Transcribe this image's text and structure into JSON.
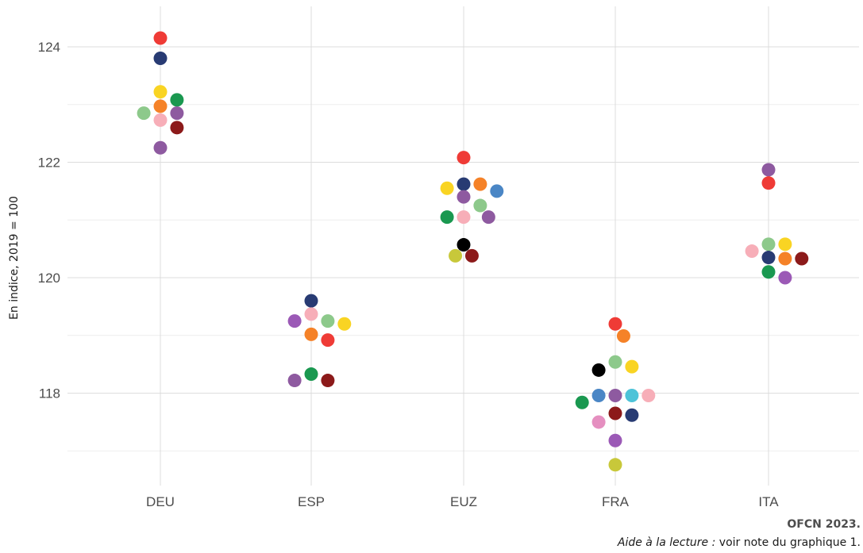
{
  "chart_data": {
    "type": "scatter",
    "ylabel": "En indice, 2019 = 100",
    "xlabel": "",
    "categories": [
      "DEU",
      "ESP",
      "EUZ",
      "FRA",
      "ITA"
    ],
    "ylim": [
      116.4,
      124.7
    ],
    "y_ticks": [
      "118",
      "120",
      "122",
      "124"
    ],
    "grid": true,
    "points": [
      {
        "category": "DEU",
        "y": 124.15,
        "color": "#ef3b36"
      },
      {
        "category": "DEU",
        "y": 123.8,
        "color": "#283b73"
      },
      {
        "category": "DEU",
        "y": 123.22,
        "color": "#f9d423"
      },
      {
        "category": "DEU",
        "y": 123.08,
        "color": "#1a9850"
      },
      {
        "category": "DEU",
        "y": 122.97,
        "color": "#f58228"
      },
      {
        "category": "DEU",
        "y": 122.85,
        "color": "#8e5aa0"
      },
      {
        "category": "DEU",
        "y": 122.85,
        "color": "#8dc98b"
      },
      {
        "category": "DEU",
        "y": 122.73,
        "color": "#f7aeb8"
      },
      {
        "category": "DEU",
        "y": 122.6,
        "color": "#8c1a1a"
      },
      {
        "category": "DEU",
        "y": 122.25,
        "color": "#8e5aa0"
      },
      {
        "category": "ESP",
        "y": 119.6,
        "color": "#283b73"
      },
      {
        "category": "ESP",
        "y": 119.37,
        "color": "#f7aeb8"
      },
      {
        "category": "ESP",
        "y": 119.25,
        "color": "#8dc98b"
      },
      {
        "category": "ESP",
        "y": 119.25,
        "color": "#9b59b6"
      },
      {
        "category": "ESP",
        "y": 119.2,
        "color": "#f9d423"
      },
      {
        "category": "ESP",
        "y": 119.02,
        "color": "#f58228"
      },
      {
        "category": "ESP",
        "y": 118.92,
        "color": "#ef3b36"
      },
      {
        "category": "ESP",
        "y": 118.33,
        "color": "#1a9850"
      },
      {
        "category": "ESP",
        "y": 118.22,
        "color": "#8c1a1a"
      },
      {
        "category": "ESP",
        "y": 118.22,
        "color": "#8e5aa0"
      },
      {
        "category": "EUZ",
        "y": 122.08,
        "color": "#ef3b36"
      },
      {
        "category": "EUZ",
        "y": 121.62,
        "color": "#283b73"
      },
      {
        "category": "EUZ",
        "y": 121.62,
        "color": "#f58228"
      },
      {
        "category": "EUZ",
        "y": 121.55,
        "color": "#f9d423"
      },
      {
        "category": "EUZ",
        "y": 121.5,
        "color": "#4a86c5"
      },
      {
        "category": "EUZ",
        "y": 121.4,
        "color": "#8e5aa0"
      },
      {
        "category": "EUZ",
        "y": 121.25,
        "color": "#8dc98b"
      },
      {
        "category": "EUZ",
        "y": 121.05,
        "color": "#f7aeb8"
      },
      {
        "category": "EUZ",
        "y": 121.05,
        "color": "#1a9850"
      },
      {
        "category": "EUZ",
        "y": 121.05,
        "color": "#8e5aa0"
      },
      {
        "category": "EUZ",
        "y": 120.57,
        "color": "#000000"
      },
      {
        "category": "EUZ",
        "y": 120.38,
        "color": "#8c1a1a"
      },
      {
        "category": "EUZ",
        "y": 120.38,
        "color": "#c8c83a"
      },
      {
        "category": "FRA",
        "y": 119.2,
        "color": "#ef3b36"
      },
      {
        "category": "FRA",
        "y": 118.99,
        "color": "#f58228"
      },
      {
        "category": "FRA",
        "y": 118.54,
        "color": "#8dc98b"
      },
      {
        "category": "FRA",
        "y": 118.46,
        "color": "#f9d423"
      },
      {
        "category": "FRA",
        "y": 118.4,
        "color": "#000000"
      },
      {
        "category": "FRA",
        "y": 117.96,
        "color": "#8e5aa0"
      },
      {
        "category": "FRA",
        "y": 117.96,
        "color": "#4dc3d8"
      },
      {
        "category": "FRA",
        "y": 117.96,
        "color": "#4a86c5"
      },
      {
        "category": "FRA",
        "y": 117.96,
        "color": "#f7aeb8"
      },
      {
        "category": "FRA",
        "y": 117.84,
        "color": "#1a9850"
      },
      {
        "category": "FRA",
        "y": 117.65,
        "color": "#8c1a1a"
      },
      {
        "category": "FRA",
        "y": 117.62,
        "color": "#283b73"
      },
      {
        "category": "FRA",
        "y": 117.5,
        "color": "#e58fc0"
      },
      {
        "category": "FRA",
        "y": 117.18,
        "color": "#9b59b6"
      },
      {
        "category": "FRA",
        "y": 116.76,
        "color": "#c8c83a"
      },
      {
        "category": "ITA",
        "y": 121.87,
        "color": "#8e5aa0"
      },
      {
        "category": "ITA",
        "y": 121.64,
        "color": "#ef3b36"
      },
      {
        "category": "ITA",
        "y": 120.58,
        "color": "#8dc98b"
      },
      {
        "category": "ITA",
        "y": 120.58,
        "color": "#f9d423"
      },
      {
        "category": "ITA",
        "y": 120.46,
        "color": "#f7aeb8"
      },
      {
        "category": "ITA",
        "y": 120.35,
        "color": "#283b73"
      },
      {
        "category": "ITA",
        "y": 120.33,
        "color": "#f58228"
      },
      {
        "category": "ITA",
        "y": 120.33,
        "color": "#8c1a1a"
      },
      {
        "category": "ITA",
        "y": 120.1,
        "color": "#1a9850"
      },
      {
        "category": "ITA",
        "y": 120.0,
        "color": "#9b59b6"
      }
    ]
  },
  "footer": {
    "source": "OFCN 2023.",
    "note_label": "Aide à la lecture :",
    "note_text": " voir note du graphique 1."
  }
}
